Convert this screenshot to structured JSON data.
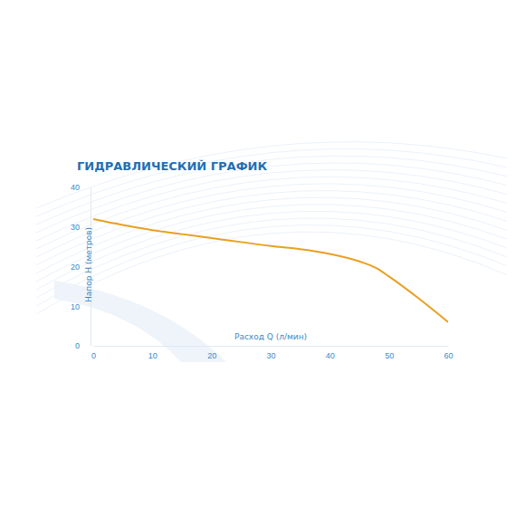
{
  "chart_data": {
    "type": "line",
    "title": "ГИДРАВЛИЧЕСКИЙ ГРАФИК",
    "xlabel": "Расход Q (л/мин)",
    "ylabel": "Напор H (метров)",
    "x": [
      0,
      5,
      10,
      15,
      20,
      25,
      30,
      35,
      40,
      45,
      48,
      50,
      55,
      60
    ],
    "values": [
      32,
      30.5,
      29.2,
      28.2,
      27.2,
      26.2,
      25.2,
      24.4,
      23.2,
      21.3,
      19.5,
      17.5,
      12,
      6
    ],
    "color": "#e8a020",
    "xlim": [
      0,
      60
    ],
    "xticks": [
      0,
      10,
      20,
      30,
      40,
      50,
      60
    ],
    "ylim": [
      0,
      40
    ],
    "yticks": [
      0,
      10,
      20,
      30,
      40
    ],
    "grid": false
  }
}
